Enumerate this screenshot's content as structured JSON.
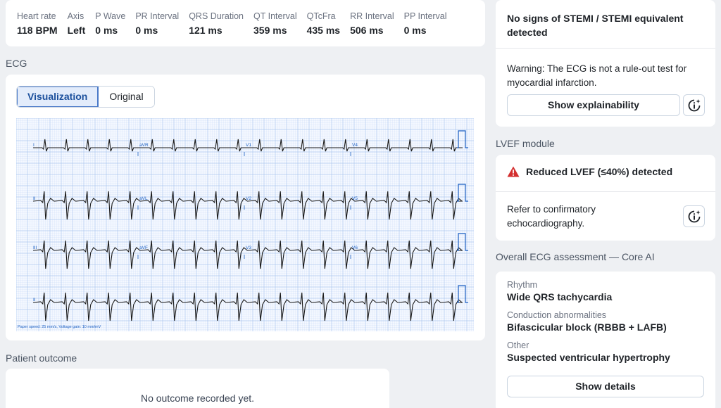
{
  "metrics": [
    {
      "label": "Heart rate",
      "value": "118 BPM"
    },
    {
      "label": "Axis",
      "value": "Left"
    },
    {
      "label": "P Wave",
      "value": "0 ms"
    },
    {
      "label": "PR Interval",
      "value": "0 ms"
    },
    {
      "label": "QRS Duration",
      "value": "121 ms"
    },
    {
      "label": "QT Interval",
      "value": "359 ms"
    },
    {
      "label": "QTcFra",
      "value": "435 ms"
    },
    {
      "label": "RR Interval",
      "value": "506 ms"
    },
    {
      "label": "PP Interval",
      "value": "0 ms"
    }
  ],
  "ecg": {
    "section_title": "ECG",
    "tabs": [
      "Visualization",
      "Original"
    ],
    "active_tab": "Visualization",
    "lead_labels": [
      [
        "I",
        "aVR",
        "V1",
        "V4"
      ],
      [
        "II",
        "aVL",
        "V2",
        "V5"
      ],
      [
        "III",
        "aVF",
        "V3",
        "V6"
      ],
      [
        "II"
      ]
    ],
    "footer": "Paper speed: 25 mm/s, Voltage gain: 10 mm/mV",
    "grid_color": "#a9c4ee",
    "trace_color": "#1a1a1a"
  },
  "outcome": {
    "section_title": "Patient outcome",
    "text": "No outcome recorded yet."
  },
  "stemi": {
    "title": "No signs of STEMI / STEMI equivalent detected",
    "warning": "Warning: The ECG is not a rule-out test for myocardial infarction.",
    "button": "Show explainability",
    "info_icon": "info-sparkle-icon"
  },
  "lvef": {
    "section_title": "LVEF module",
    "alert": "Reduced LVEF (≤40%) detected",
    "alert_icon": "warning-triangle-icon",
    "alert_color": "#d32f2f",
    "refer": "Refer to confirmatory echocardiography.",
    "info_icon": "info-sparkle-icon"
  },
  "assessment": {
    "section_title": "Overall ECG assessment — Core AI",
    "items": [
      {
        "label": "Rhythm",
        "value": "Wide QRS tachycardia"
      },
      {
        "label": "Conduction abnormalities",
        "value": "Bifascicular block (RBBB + LAFB)"
      },
      {
        "label": "Other",
        "value": "Suspected ventricular hypertrophy"
      }
    ],
    "button": "Show details"
  }
}
